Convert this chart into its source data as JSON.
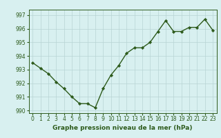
{
  "x": [
    0,
    1,
    2,
    3,
    4,
    5,
    6,
    7,
    8,
    9,
    10,
    11,
    12,
    13,
    14,
    15,
    16,
    17,
    18,
    19,
    20,
    21,
    22,
    23
  ],
  "y": [
    993.5,
    993.1,
    992.7,
    992.1,
    991.6,
    991.0,
    990.5,
    990.5,
    990.2,
    991.6,
    992.6,
    993.3,
    994.2,
    994.6,
    994.6,
    995.0,
    995.8,
    996.6,
    995.8,
    995.8,
    996.1,
    996.1,
    996.7,
    995.9
  ],
  "line_color": "#2d5a1b",
  "marker": "D",
  "marker_size": 2.2,
  "bg_color": "#d8f0f0",
  "grid_color": "#b8d4d4",
  "xlabel": "Graphe pression niveau de la mer (hPa)",
  "ylim": [
    989.8,
    997.4
  ],
  "yticks": [
    990,
    991,
    992,
    993,
    994,
    995,
    996,
    997
  ],
  "xticks": [
    0,
    1,
    2,
    3,
    4,
    5,
    6,
    7,
    8,
    9,
    10,
    11,
    12,
    13,
    14,
    15,
    16,
    17,
    18,
    19,
    20,
    21,
    22,
    23
  ],
  "xlabel_fontsize": 6.5,
  "tick_fontsize": 5.5,
  "line_width": 1.0
}
